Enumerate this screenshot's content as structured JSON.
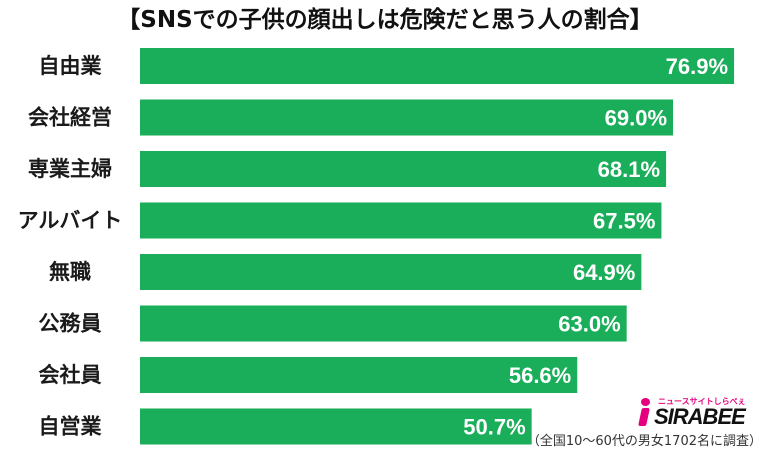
{
  "chart_data": {
    "type": "bar",
    "orientation": "horizontal",
    "title": "【SNSでの子供の顔出しは危険だと思う人の割合】",
    "categories": [
      "自由業",
      "会社経営",
      "専業主婦",
      "アルバイト",
      "無職",
      "公務員",
      "会社員",
      "自営業"
    ],
    "values": [
      76.9,
      69.0,
      68.1,
      67.5,
      64.9,
      63.0,
      56.6,
      50.7
    ],
    "value_labels": [
      "76.9%",
      "69.0%",
      "68.1%",
      "67.5%",
      "64.9%",
      "63.0%",
      "56.6%",
      "50.7%"
    ],
    "xlim": [
      0,
      80
    ],
    "unit": "%",
    "grid": false,
    "bar_color": "#1aae5a"
  },
  "logo": {
    "name": "SIRABEE",
    "tagline": "ニュースサイトしらべぇ",
    "color": "#e4007f"
  },
  "note": "（全国10〜60代の男女1702名に調査）"
}
